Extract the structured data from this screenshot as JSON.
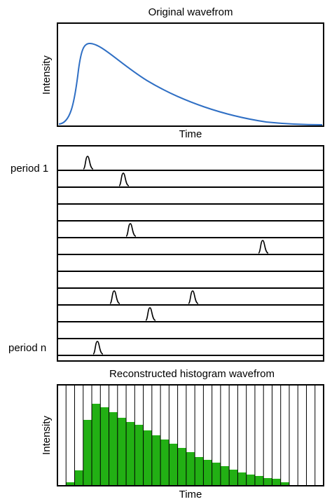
{
  "panels": [
    {
      "title": "Original wavefrom",
      "y_label": "Intensity",
      "x_label": "Time"
    },
    {
      "period_labels": [
        "period 1",
        "period n"
      ]
    },
    {
      "title": "Reconstructed histogram wavefrom",
      "y_label": "Intensity",
      "x_label": "Time",
      "histogram": {
        "values": [
          0,
          5,
          22,
          94,
          117,
          112,
          105,
          97,
          91,
          87,
          79,
          72,
          66,
          60,
          54,
          48,
          41,
          37,
          33,
          28,
          23,
          19,
          16,
          14,
          11,
          10,
          5,
          0,
          0,
          0,
          0
        ],
        "ylim": [
          0,
          144
        ],
        "color": "#22b014"
      }
    }
  ]
}
